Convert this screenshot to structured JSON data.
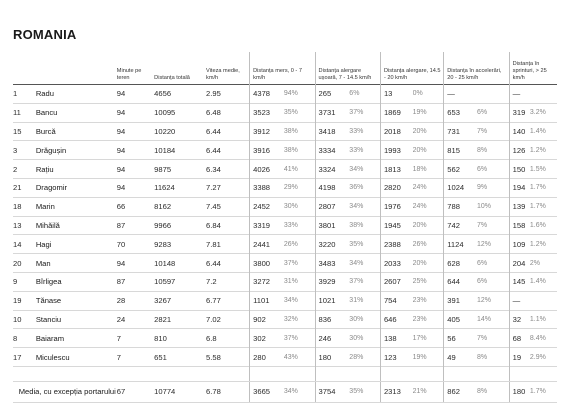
{
  "title": "ROMANIA",
  "headers": {
    "number": "",
    "name": "",
    "minutes": "Minute pe teren",
    "total_distance": "Distanța totală",
    "avg_speed": "Viteza medie, km/h",
    "walk": "Distanța mers, 0 - 7 km/h",
    "jog": "Distanța alergare ușoară, 7 - 14.5 km/h",
    "run": "Distanța alergare, 14.5 - 20 km/h",
    "accel": "Distanța în accelerări, 20 - 25 km/h",
    "sprint": "Distanța în sprinturi, > 25 km/h"
  },
  "rows": [
    {
      "no": "1",
      "name": "Radu",
      "min": "94",
      "total": "4656",
      "speed": "2.95",
      "walk": "4378",
      "walk_pct": "94%",
      "jog": "265",
      "jog_pct": "6%",
      "run": "13",
      "run_pct": "0%",
      "acc": "—",
      "acc_pct": "",
      "spr": "—",
      "spr_pct": ""
    },
    {
      "no": "11",
      "name": "Bancu",
      "min": "94",
      "total": "10095",
      "speed": "6.48",
      "walk": "3523",
      "walk_pct": "35%",
      "jog": "3731",
      "jog_pct": "37%",
      "run": "1869",
      "run_pct": "19%",
      "acc": "653",
      "acc_pct": "6%",
      "spr": "319",
      "spr_pct": "3.2%"
    },
    {
      "no": "15",
      "name": "Burcă",
      "min": "94",
      "total": "10220",
      "speed": "6.44",
      "walk": "3912",
      "walk_pct": "38%",
      "jog": "3418",
      "jog_pct": "33%",
      "run": "2018",
      "run_pct": "20%",
      "acc": "731",
      "acc_pct": "7%",
      "spr": "140",
      "spr_pct": "1.4%"
    },
    {
      "no": "3",
      "name": "Drăgușin",
      "min": "94",
      "total": "10184",
      "speed": "6.44",
      "walk": "3916",
      "walk_pct": "38%",
      "jog": "3334",
      "jog_pct": "33%",
      "run": "1993",
      "run_pct": "20%",
      "acc": "815",
      "acc_pct": "8%",
      "spr": "126",
      "spr_pct": "1.2%"
    },
    {
      "no": "2",
      "name": "Rațiu",
      "min": "94",
      "total": "9875",
      "speed": "6.34",
      "walk": "4026",
      "walk_pct": "41%",
      "jog": "3324",
      "jog_pct": "34%",
      "run": "1813",
      "run_pct": "18%",
      "acc": "562",
      "acc_pct": "6%",
      "spr": "150",
      "spr_pct": "1.5%"
    },
    {
      "no": "21",
      "name": "Dragomir",
      "min": "94",
      "total": "11624",
      "speed": "7.27",
      "walk": "3388",
      "walk_pct": "29%",
      "jog": "4198",
      "jog_pct": "36%",
      "run": "2820",
      "run_pct": "24%",
      "acc": "1024",
      "acc_pct": "9%",
      "spr": "194",
      "spr_pct": "1.7%"
    },
    {
      "no": "18",
      "name": "Marin",
      "min": "66",
      "total": "8162",
      "speed": "7.45",
      "walk": "2452",
      "walk_pct": "30%",
      "jog": "2807",
      "jog_pct": "34%",
      "run": "1976",
      "run_pct": "24%",
      "acc": "788",
      "acc_pct": "10%",
      "spr": "139",
      "spr_pct": "1.7%"
    },
    {
      "no": "13",
      "name": "Mihăilă",
      "min": "87",
      "total": "9966",
      "speed": "6.84",
      "walk": "3319",
      "walk_pct": "33%",
      "jog": "3801",
      "jog_pct": "38%",
      "run": "1945",
      "run_pct": "20%",
      "acc": "742",
      "acc_pct": "7%",
      "spr": "158",
      "spr_pct": "1.6%"
    },
    {
      "no": "14",
      "name": "Hagi",
      "min": "70",
      "total": "9283",
      "speed": "7.81",
      "walk": "2441",
      "walk_pct": "26%",
      "jog": "3220",
      "jog_pct": "35%",
      "run": "2388",
      "run_pct": "26%",
      "acc": "1124",
      "acc_pct": "12%",
      "spr": "109",
      "spr_pct": "1.2%"
    },
    {
      "no": "20",
      "name": "Man",
      "min": "94",
      "total": "10148",
      "speed": "6.44",
      "walk": "3800",
      "walk_pct": "37%",
      "jog": "3483",
      "jog_pct": "34%",
      "run": "2033",
      "run_pct": "20%",
      "acc": "628",
      "acc_pct": "6%",
      "spr": "204",
      "spr_pct": "2%"
    },
    {
      "no": "9",
      "name": "Bîrligea",
      "min": "87",
      "total": "10597",
      "speed": "7.2",
      "walk": "3272",
      "walk_pct": "31%",
      "jog": "3929",
      "jog_pct": "37%",
      "run": "2607",
      "run_pct": "25%",
      "acc": "644",
      "acc_pct": "6%",
      "spr": "145",
      "spr_pct": "1.4%"
    },
    {
      "no": "19",
      "name": "Tănase",
      "min": "28",
      "total": "3267",
      "speed": "6.77",
      "walk": "1101",
      "walk_pct": "34%",
      "jog": "1021",
      "jog_pct": "31%",
      "run": "754",
      "run_pct": "23%",
      "acc": "391",
      "acc_pct": "12%",
      "spr": "—",
      "spr_pct": ""
    },
    {
      "no": "10",
      "name": "Stanciu",
      "min": "24",
      "total": "2821",
      "speed": "7.02",
      "walk": "902",
      "walk_pct": "32%",
      "jog": "836",
      "jog_pct": "30%",
      "run": "646",
      "run_pct": "23%",
      "acc": "405",
      "acc_pct": "14%",
      "spr": "32",
      "spr_pct": "1.1%"
    },
    {
      "no": "8",
      "name": "Baiaram",
      "min": "7",
      "total": "810",
      "speed": "6.8",
      "walk": "302",
      "walk_pct": "37%",
      "jog": "246",
      "jog_pct": "30%",
      "run": "138",
      "run_pct": "17%",
      "acc": "56",
      "acc_pct": "7%",
      "spr": "68",
      "spr_pct": "8.4%"
    },
    {
      "no": "17",
      "name": "Miculescu",
      "min": "7",
      "total": "651",
      "speed": "5.58",
      "walk": "280",
      "walk_pct": "43%",
      "jog": "180",
      "jog_pct": "28%",
      "run": "123",
      "run_pct": "19%",
      "acc": "49",
      "acc_pct": "8%",
      "spr": "19",
      "spr_pct": "2.9%"
    }
  ],
  "footer": {
    "label": "Media, cu excepția portarului",
    "min": "67",
    "total": "10774",
    "speed": "6.78",
    "walk": "3665",
    "walk_pct": "34%",
    "jog": "3754",
    "jog_pct": "35%",
    "run": "2313",
    "run_pct": "21%",
    "acc": "862",
    "acc_pct": "8%",
    "spr": "180",
    "spr_pct": "1.7%"
  }
}
